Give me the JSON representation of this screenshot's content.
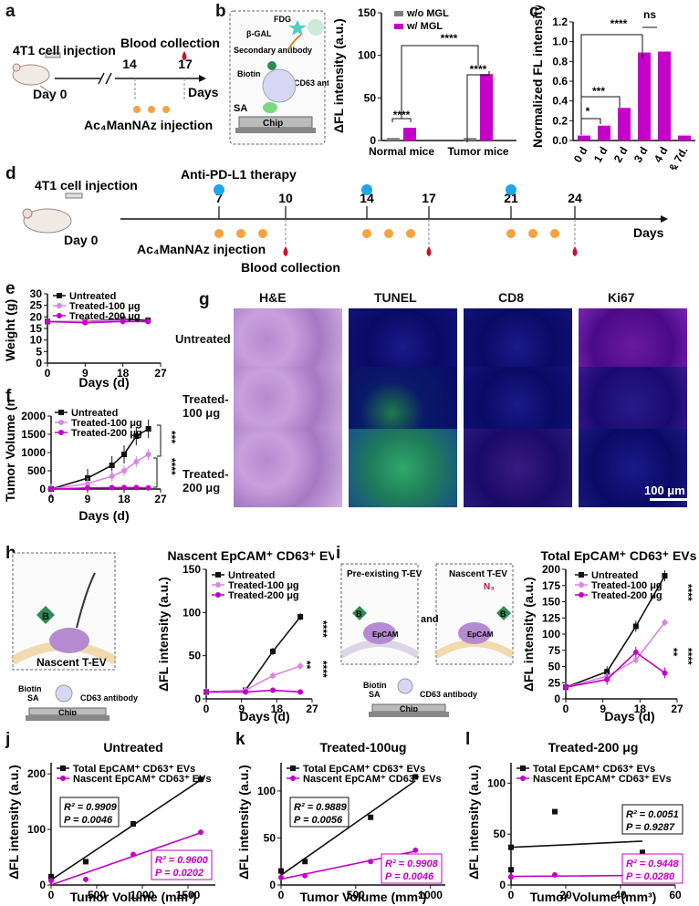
{
  "panels": {
    "a": "a",
    "b": "b",
    "c": "c",
    "d": "d",
    "e": "e",
    "f": "f",
    "g": "g",
    "h": "h",
    "i": "i",
    "j": "j",
    "k": "k",
    "l": "l"
  },
  "timeline_a": {
    "injection": "4T1 cell injection",
    "blood": "Blood collection",
    "day0": "Day 0",
    "d14": "14",
    "d17": "17",
    "days": "Days",
    "ac4": "Ac₄ManNAz injection"
  },
  "schematic_b": {
    "fdg": "FDG",
    "bgal": "β-GAL",
    "secondary": "Secondary antibody",
    "biotin": "Biotin",
    "cd63": "CD63 antibody",
    "sa": "SA",
    "chip": "Chip"
  },
  "chart_b": {
    "ylabel": "ΔFL intensity (a.u.)",
    "ticks": [
      "0",
      "50",
      "100",
      "150"
    ],
    "categories": [
      "Normal mice",
      "Tumor mice"
    ],
    "legend": [
      "w/o MGL",
      "w/ MGL"
    ],
    "sig": [
      "****",
      "****",
      "****"
    ],
    "colors": {
      "gray": "#7f7f7f",
      "magenta": "#c400c8"
    }
  },
  "chart_c": {
    "ylabel": "Normalized FL intensity",
    "ticks": [
      "0.0",
      "0.2",
      "0.4",
      "0.6",
      "0.8",
      "1.0",
      "1.2"
    ],
    "categories": [
      "0 d",
      "1 d",
      "2 d",
      "3 d",
      "4 d",
      "3d & 7d."
    ],
    "sig": [
      "****",
      "ns",
      "***",
      "*"
    ]
  },
  "timeline_d": {
    "injection": "4T1 cell injection",
    "therapy": "Anti-PD-L1 therapy",
    "day0": "Day 0",
    "ticks": [
      "7",
      "10",
      "14",
      "17",
      "21",
      "24"
    ],
    "days": "Days",
    "ac4": "Ac₄ManNAz injection",
    "blood": "Blood collection"
  },
  "chart_e": {
    "ylabel": "Weight (g)",
    "xlabel": "Days (d)",
    "yticks": [
      "0",
      "5",
      "10",
      "15",
      "20",
      "25",
      "30"
    ],
    "xticks": [
      "0",
      "9",
      "18",
      "27"
    ],
    "legend": [
      "Untreated",
      "Treated-100 μg",
      "Treated-200 μg"
    ]
  },
  "chart_f": {
    "ylabel": "Tumor Volume (mm³)",
    "xlabel": "Days (d)",
    "yticks": [
      "0",
      "500",
      "1000",
      "1500",
      "2000"
    ],
    "xticks": [
      "0",
      "9",
      "18",
      "27"
    ],
    "legend": [
      "Untreated",
      "Treated-100 μg",
      "Treated-200 μg"
    ],
    "sig": [
      "***",
      "****"
    ]
  },
  "grid_g": {
    "cols": [
      "H&E",
      "TUNEL",
      "CD8",
      "Ki67"
    ],
    "rows": [
      "Untreated",
      "Treated-\n100 μg",
      "Treated-\n200 μg"
    ],
    "scale": "100 μm"
  },
  "schematic_h": {
    "nascent": "Nascent T-EV",
    "biotin": "Biotin",
    "sa": "SA",
    "cd63": "CD63 antibody",
    "chip": "Chip",
    "b": "B"
  },
  "chart_h": {
    "title": "Nascent EpCAM⁺ CD63⁺ EVs",
    "ylabel": "ΔFL intensity (a.u.)",
    "xlabel": "Days (d)",
    "yticks": [
      "0",
      "50",
      "100",
      "150"
    ],
    "xticks": [
      "0",
      "9",
      "18",
      "27"
    ],
    "legend": [
      "Untreated",
      "Treated-100 μg",
      "Treated-200 μg"
    ],
    "sig": [
      "**",
      "****",
      "****"
    ]
  },
  "schematic_i": {
    "pre": "Pre-existing T-EV",
    "nascent": "Nascent T-EV",
    "and": "and",
    "epcam": "EpCAM",
    "n3": "N₃",
    "biotin": "Biotin",
    "sa": "SA",
    "cd63": "CD63 antibody",
    "chip": "Chip",
    "b": "B"
  },
  "chart_i": {
    "title": "Total EpCAM⁺ CD63⁺ EVs",
    "ylabel": "ΔFL intensity (a.u.)",
    "xlabel": "Days (d)",
    "yticks": [
      "0",
      "25",
      "50",
      "75",
      "100",
      "125",
      "150",
      "175",
      "200"
    ],
    "xticks": [
      "0",
      "9",
      "18",
      "27"
    ],
    "legend": [
      "Untreated",
      "Treated-100 μg",
      "Treated-200 μg"
    ],
    "sig": [
      "**",
      "****",
      "****"
    ]
  },
  "chart_j": {
    "title": "Untreated",
    "ylabel": "ΔFL intensity (a.u.)",
    "xlabel": "Tumor Volume (mm³)",
    "yticks": [
      "0",
      "100",
      "200"
    ],
    "xticks": [
      "0",
      "500",
      "1000",
      "1500"
    ],
    "legend": [
      "Total EpCAM⁺ CD63⁺ EVs",
      "Nascent EpCAM⁺ CD63⁺ EVs"
    ],
    "r2a": "R² = 0.9909",
    "pa": "P = 0.0046",
    "r2b": "R² = 0.9600",
    "pb": "P = 0.0202"
  },
  "chart_k": {
    "title": "Treated-100ug",
    "ylabel": "ΔFL intensity (a.u.)",
    "xlabel": "Tumor Volume (mm³)",
    "yticks": [
      "0",
      "50",
      "100"
    ],
    "xticks": [
      "0",
      "500",
      "1000"
    ],
    "legend": [
      "Total EpCAM⁺ CD63⁺ EVs",
      "Nascent EpCAM⁺ CD63⁺ EVs"
    ],
    "r2a": "R² = 0.9889",
    "pa": "P = 0.0056",
    "r2b": "R² = 0.9908",
    "pb": "P = 0.0046"
  },
  "chart_l": {
    "title": "Treated-200 μg",
    "ylabel": "ΔFL intensity (a.u.)",
    "xlabel": "Tumor Volume (mm³)",
    "yticks": [
      "0",
      "50",
      "100"
    ],
    "xticks": [
      "0",
      "20",
      "40",
      "60"
    ],
    "legend": [
      "Total EpCAM⁺ CD63⁺ EVs",
      "Nascent EpCAM⁺ CD63⁺ EVs"
    ],
    "r2a": "R² = 0.0051",
    "pa": "P = 0.9287",
    "r2b": "R² = 0.9448",
    "pb": "P = 0.0280"
  },
  "chart_data": [
    {
      "type": "bar",
      "categories": [
        "Normal mice",
        "Tumor mice"
      ],
      "series": [
        {
          "name": "w/o MGL",
          "values": [
            3,
            3
          ]
        },
        {
          "name": "w/ MGL",
          "values": [
            15,
            78
          ]
        }
      ],
      "ylabel": "ΔFL intensity (a.u.)",
      "ylim": [
        0,
        150
      ]
    },
    {
      "type": "bar",
      "categories": [
        "0 d",
        "1 d",
        "2 d",
        "3 d",
        "4 d",
        "3d & 7d."
      ],
      "values": [
        0.05,
        0.15,
        0.33,
        0.89,
        0.9,
        0.05
      ],
      "ylabel": "Normalized FL intensity",
      "ylim": [
        0,
        1.2
      ]
    },
    {
      "type": "line",
      "x": [
        0,
        9,
        18,
        24
      ],
      "series": [
        {
          "name": "Untreated",
          "values": [
            18,
            18,
            19,
            18.5
          ]
        },
        {
          "name": "Treated-100 μg",
          "values": [
            18,
            18,
            18.5,
            18
          ]
        },
        {
          "name": "Treated-200 μg",
          "values": [
            18,
            17.5,
            18,
            18
          ]
        }
      ],
      "xlabel": "Days (d)",
      "ylabel": "Weight (g)",
      "ylim": [
        0,
        30
      ]
    },
    {
      "type": "line",
      "x": [
        0,
        9,
        15,
        18,
        21,
        24
      ],
      "series": [
        {
          "name": "Untreated",
          "values": [
            0,
            300,
            650,
            950,
            1450,
            1650
          ]
        },
        {
          "name": "Treated-100 μg",
          "values": [
            0,
            150,
            350,
            500,
            750,
            950
          ]
        },
        {
          "name": "Treated-200 μg",
          "values": [
            0,
            30,
            40,
            40,
            40,
            30
          ]
        }
      ],
      "xlabel": "Days (d)",
      "ylabel": "Tumor Volume (mm³)",
      "ylim": [
        0,
        2000
      ]
    },
    {
      "type": "line",
      "x": [
        0,
        10,
        17,
        24
      ],
      "series": [
        {
          "name": "Untreated",
          "values": [
            8,
            10,
            55,
            95
          ]
        },
        {
          "name": "Treated-100 μg",
          "values": [
            8,
            10,
            27,
            38
          ]
        },
        {
          "name": "Treated-200 μg",
          "values": [
            8,
            8,
            10,
            8
          ]
        }
      ],
      "title": "Nascent EpCAM⁺ CD63⁺ EVs",
      "xlabel": "Days (d)",
      "ylabel": "ΔFL intensity (a.u.)",
      "ylim": [
        0,
        150
      ]
    },
    {
      "type": "line",
      "x": [
        0,
        10,
        17,
        24
      ],
      "series": [
        {
          "name": "Untreated",
          "values": [
            18,
            42,
            112,
            190
          ]
        },
        {
          "name": "Treated-100 μg",
          "values": [
            18,
            35,
            60,
            118
          ]
        },
        {
          "name": "Treated-200 μg",
          "values": [
            18,
            30,
            72,
            40
          ]
        }
      ],
      "title": "Total EpCAM⁺ CD63⁺ EVs",
      "xlabel": "Days (d)",
      "ylabel": "ΔFL intensity (a.u.)",
      "ylim": [
        0,
        200
      ]
    },
    {
      "type": "scatter",
      "series": [
        {
          "name": "Total EpCAM⁺ CD63⁺ EVs",
          "x": [
            0,
            380,
            900,
            1640
          ],
          "values": [
            15,
            42,
            110,
            190
          ]
        },
        {
          "name": "Nascent EpCAM⁺ CD63⁺ EVs",
          "x": [
            0,
            380,
            900,
            1640
          ],
          "values": [
            8,
            10,
            55,
            95
          ]
        }
      ],
      "title": "Untreated",
      "xlabel": "Tumor Volume (mm³)",
      "ylabel": "ΔFL intensity (a.u.)",
      "xlim": [
        0,
        1800
      ],
      "ylim": [
        0,
        220
      ]
    },
    {
      "type": "scatter",
      "series": [
        {
          "name": "Total EpCAM⁺ CD63⁺ EVs",
          "x": [
            0,
            160,
            600,
            900
          ],
          "values": [
            15,
            25,
            72,
            115
          ]
        },
        {
          "name": "Nascent EpCAM⁺ CD63⁺ EVs",
          "x": [
            0,
            160,
            600,
            900
          ],
          "values": [
            8,
            10,
            25,
            37
          ]
        }
      ],
      "title": "Treated-100ug",
      "xlabel": "Tumor Volume (mm³)",
      "ylabel": "ΔFL intensity (a.u.)",
      "xlim": [
        0,
        1100
      ],
      "ylim": [
        0,
        130
      ]
    },
    {
      "type": "scatter",
      "series": [
        {
          "name": "Total EpCAM⁺ CD63⁺ EVs",
          "x": [
            0,
            0,
            16,
            48
          ],
          "values": [
            37,
            15,
            72,
            32
          ]
        },
        {
          "name": "Nascent EpCAM⁺ CD63⁺ EVs",
          "x": [
            0,
            0,
            16,
            48
          ],
          "values": [
            8,
            8,
            10,
            9
          ]
        }
      ],
      "title": "Treated-200 μg",
      "xlabel": "Tumor Volume (mm³)",
      "ylabel": "ΔFL intensity (a.u.)",
      "xlim": [
        0,
        60
      ],
      "ylim": [
        0,
        120
      ]
    }
  ]
}
